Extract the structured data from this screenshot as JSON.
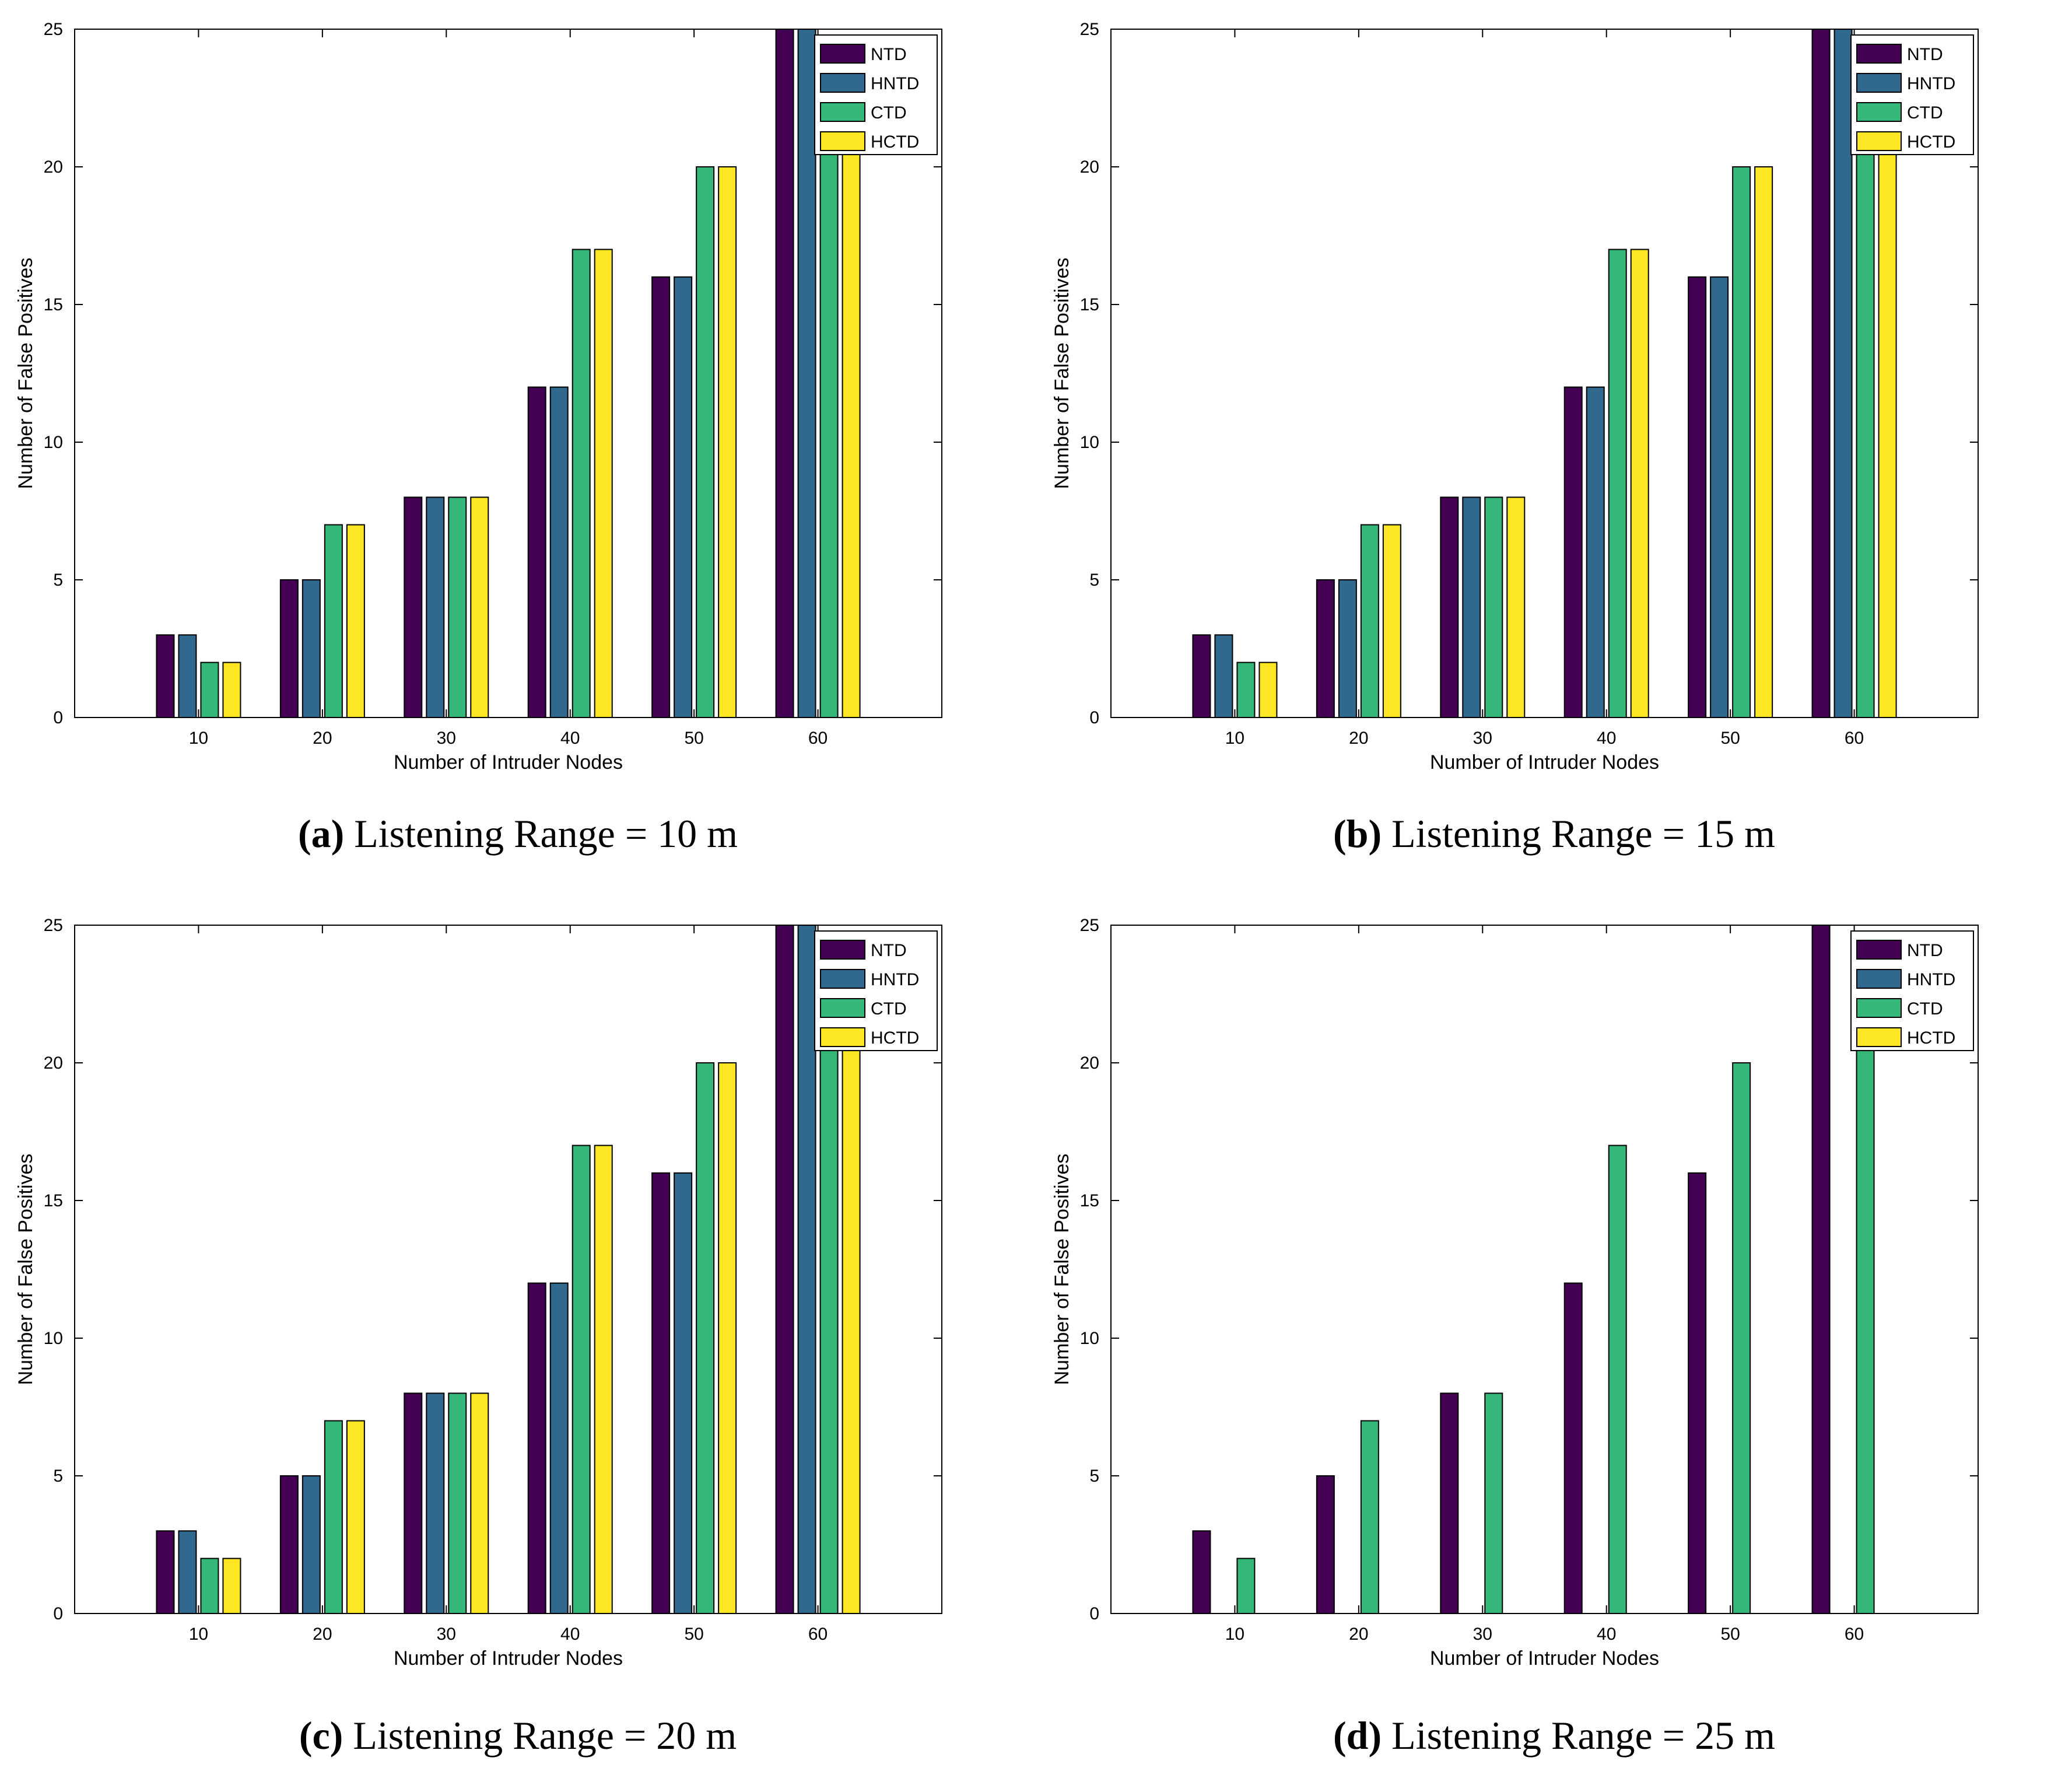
{
  "colors": {
    "NTD": "#440154",
    "HNTD": "#31688e",
    "CTD": "#35b779",
    "HCTD": "#fde725"
  },
  "chart_data": [
    {
      "type": "bar",
      "caption_label": "(a)",
      "caption_text": "Listening Range = 10 m",
      "xlabel": "Number of Intruder Nodes",
      "ylabel": "Number of False Positives",
      "ylim": [
        0,
        25
      ],
      "yticks": [
        "0",
        "5",
        "10",
        "15",
        "20",
        "25"
      ],
      "categories": [
        "10",
        "20",
        "30",
        "40",
        "50",
        "60"
      ],
      "legend_position": "top-right",
      "series": [
        {
          "name": "NTD",
          "values": [
            3,
            5,
            8,
            12,
            16,
            25
          ]
        },
        {
          "name": "HNTD",
          "values": [
            3,
            5,
            8,
            12,
            16,
            25
          ]
        },
        {
          "name": "CTD",
          "values": [
            2,
            7,
            8,
            17,
            20,
            21
          ]
        },
        {
          "name": "HCTD",
          "values": [
            2,
            7,
            8,
            17,
            20,
            21
          ]
        }
      ]
    },
    {
      "type": "bar",
      "caption_label": "(b)",
      "caption_text": "Listening Range = 15 m",
      "xlabel": "Number of Intruder Nodes",
      "ylabel": "Number of False Positives",
      "ylim": [
        0,
        25
      ],
      "yticks": [
        "0",
        "5",
        "10",
        "15",
        "20",
        "25"
      ],
      "categories": [
        "10",
        "20",
        "30",
        "40",
        "50",
        "60"
      ],
      "legend_position": "top-right",
      "series": [
        {
          "name": "NTD",
          "values": [
            3,
            5,
            8,
            12,
            16,
            25
          ]
        },
        {
          "name": "HNTD",
          "values": [
            3,
            5,
            8,
            12,
            16,
            25
          ]
        },
        {
          "name": "CTD",
          "values": [
            2,
            7,
            8,
            17,
            20,
            21
          ]
        },
        {
          "name": "HCTD",
          "values": [
            2,
            7,
            8,
            17,
            20,
            21
          ]
        }
      ]
    },
    {
      "type": "bar",
      "caption_label": "(c)",
      "caption_text": "Listening Range = 20 m",
      "xlabel": "Number of Intruder Nodes",
      "ylabel": "Number of False Positives",
      "ylim": [
        0,
        25
      ],
      "yticks": [
        "0",
        "5",
        "10",
        "15",
        "20",
        "25"
      ],
      "categories": [
        "10",
        "20",
        "30",
        "40",
        "50",
        "60"
      ],
      "legend_position": "top-right",
      "series": [
        {
          "name": "NTD",
          "values": [
            3,
            5,
            8,
            12,
            16,
            25
          ]
        },
        {
          "name": "HNTD",
          "values": [
            3,
            5,
            8,
            12,
            16,
            25
          ]
        },
        {
          "name": "CTD",
          "values": [
            2,
            7,
            8,
            17,
            20,
            21
          ]
        },
        {
          "name": "HCTD",
          "values": [
            2,
            7,
            8,
            17,
            20,
            21
          ]
        }
      ]
    },
    {
      "type": "bar",
      "caption_label": "(d)",
      "caption_text": "Listening Range = 25 m",
      "xlabel": "Number of Intruder Nodes",
      "ylabel": "Number of False Positives",
      "ylim": [
        0,
        25
      ],
      "yticks": [
        "0",
        "5",
        "10",
        "15",
        "20",
        "25"
      ],
      "categories": [
        "10",
        "20",
        "30",
        "40",
        "50",
        "60"
      ],
      "legend_position": "top-right",
      "series": [
        {
          "name": "NTD",
          "values": [
            3,
            5,
            8,
            12,
            16,
            25
          ]
        },
        {
          "name": "HNTD",
          "values": [
            0,
            0,
            0,
            0,
            0,
            0
          ]
        },
        {
          "name": "CTD",
          "values": [
            2,
            7,
            8,
            17,
            20,
            21
          ]
        },
        {
          "name": "HCTD",
          "values": [
            0,
            0,
            0,
            0,
            0,
            0
          ]
        }
      ]
    }
  ]
}
